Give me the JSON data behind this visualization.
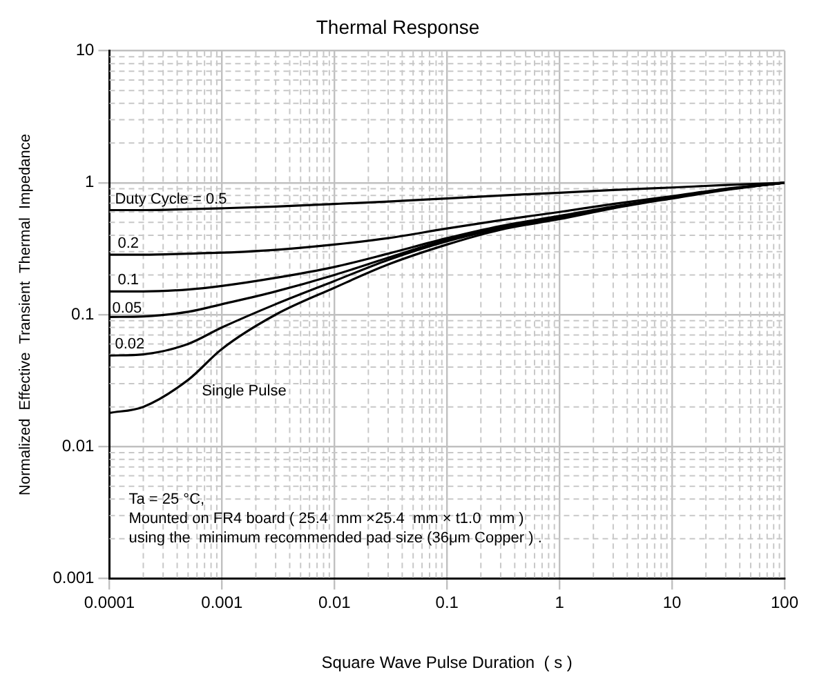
{
  "chart_data": {
    "type": "line",
    "title": "Thermal Response",
    "xlabel": "Square Wave Pulse Duration  ( s )",
    "ylabel": "Normalized  Effective  Transient  Thermal  Impedance",
    "log": "xy",
    "grid": true,
    "legend": false,
    "marker": "none",
    "line_style": "solid",
    "x": [
      0.0001,
      0.0002,
      0.0005,
      0.001,
      0.003,
      0.01,
      0.03,
      0.1,
      0.3,
      1,
      3,
      10,
      30,
      100
    ],
    "xlim": [
      0.0001,
      100
    ],
    "xticks": [
      0.0001,
      0.001,
      0.01,
      0.1,
      1,
      10,
      100
    ],
    "ylim": [
      0.001,
      10
    ],
    "yticks": [
      0.001,
      0.01,
      0.1,
      1,
      10
    ],
    "series": [
      {
        "name": "Duty Cycle = 0.5",
        "color": "#000000",
        "values": [
          0.62,
          0.62,
          0.63,
          0.64,
          0.66,
          0.69,
          0.72,
          0.76,
          0.8,
          0.84,
          0.88,
          0.92,
          0.96,
          1
        ]
      },
      {
        "name": "0.2",
        "color": "#000000",
        "values": [
          0.285,
          0.285,
          0.29,
          0.295,
          0.31,
          0.34,
          0.38,
          0.45,
          0.52,
          0.6,
          0.69,
          0.79,
          0.9,
          1
        ]
      },
      {
        "name": "0.1",
        "color": "#000000",
        "values": [
          0.15,
          0.15,
          0.155,
          0.165,
          0.19,
          0.23,
          0.29,
          0.38,
          0.47,
          0.56,
          0.66,
          0.77,
          0.89,
          1
        ]
      },
      {
        "name": "0.05",
        "color": "#000000",
        "values": [
          0.096,
          0.097,
          0.105,
          0.12,
          0.15,
          0.2,
          0.27,
          0.37,
          0.46,
          0.55,
          0.65,
          0.77,
          0.89,
          1
        ]
      },
      {
        "name": "0.02",
        "color": "#000000",
        "values": [
          0.049,
          0.05,
          0.06,
          0.08,
          0.12,
          0.18,
          0.26,
          0.36,
          0.45,
          0.54,
          0.65,
          0.77,
          0.89,
          1
        ]
      },
      {
        "name": "Single Pulse",
        "color": "#000000",
        "values": [
          0.018,
          0.02,
          0.032,
          0.055,
          0.1,
          0.16,
          0.24,
          0.34,
          0.44,
          0.53,
          0.64,
          0.76,
          0.88,
          1
        ]
      }
    ],
    "annotations": [
      "Ta = 25 °C,",
      "Mounted on FR4 board ( 25.4  mm ×25.4  mm × t1.0  mm )",
      "using the  minimum recommended pad size (36μm Copper ) ."
    ]
  }
}
